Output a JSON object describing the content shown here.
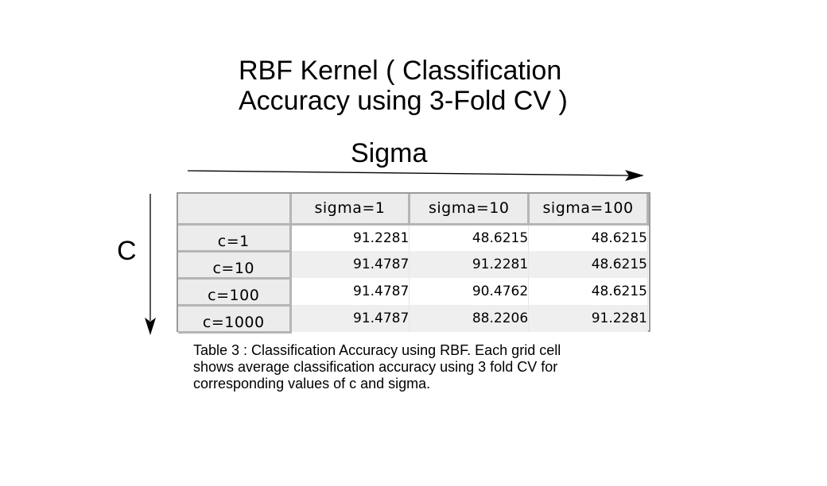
{
  "title": "RBF Kernel ( Classification\nAccuracy using 3-Fold CV )",
  "sigma_axis_label": "Sigma",
  "c_axis_label": "C",
  "caption": "Table 3 : Classification Accuracy using RBF. Each grid cell\nshows average classification accuracy using 3 fold CV for\ncorresponding values of c and sigma.",
  "chart_data": {
    "type": "table",
    "title": "RBF Kernel ( Classification Accuracy using 3-Fold CV )",
    "xlabel": "Sigma",
    "ylabel": "C",
    "columns": [
      "sigma=1",
      "sigma=10",
      "sigma=100"
    ],
    "rows": [
      {
        "label": "c=1",
        "values": [
          "91.2281",
          "48.6215",
          "48.6215"
        ]
      },
      {
        "label": "c=10",
        "values": [
          "91.4787",
          "91.2281",
          "48.6215"
        ]
      },
      {
        "label": "c=100",
        "values": [
          "91.4787",
          "90.4762",
          "48.6215"
        ]
      },
      {
        "label": "c=1000",
        "values": [
          "91.4787",
          "88.2206",
          "91.2281"
        ]
      }
    ]
  }
}
